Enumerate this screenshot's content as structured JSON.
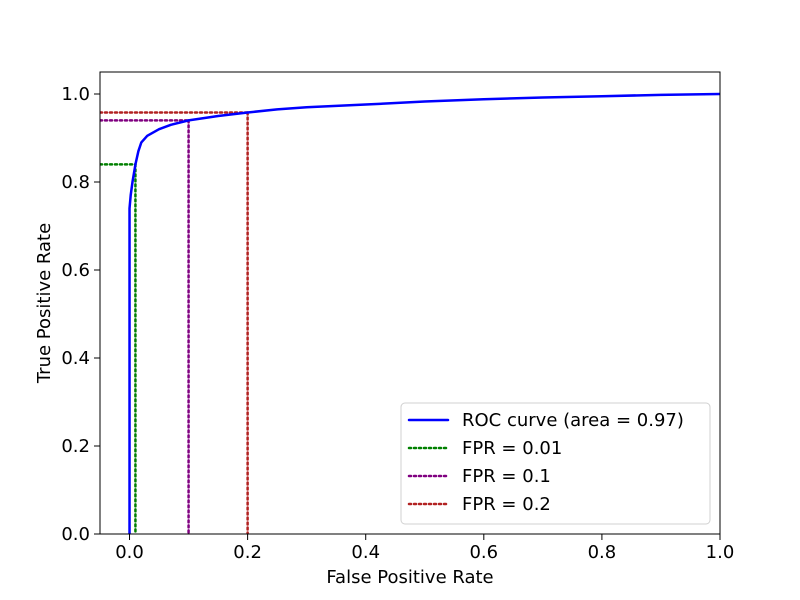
{
  "chart_data": {
    "type": "line",
    "title": "",
    "xlabel": "False Positive Rate",
    "ylabel": "True Positive Rate",
    "xlim": [
      -0.05,
      1.0
    ],
    "ylim": [
      0.0,
      1.05
    ],
    "x_ticks": [
      0.0,
      0.2,
      0.4,
      0.6,
      0.8,
      1.0
    ],
    "x_tick_labels": [
      "0.0",
      "0.2",
      "0.4",
      "0.6",
      "0.8",
      "1.0"
    ],
    "y_ticks": [
      0.0,
      0.2,
      0.4,
      0.6,
      0.8,
      1.0
    ],
    "y_tick_labels": [
      "0.0",
      "0.2",
      "0.4",
      "0.6",
      "0.8",
      "1.0"
    ],
    "grid": false,
    "legend_position": "lower-right",
    "series": [
      {
        "name": "ROC curve (area = 0.97)",
        "color": "#0000ff",
        "line_style": "solid",
        "points": [
          [
            0.0,
            0.0
          ],
          [
            0.0,
            0.74
          ],
          [
            0.002,
            0.77
          ],
          [
            0.005,
            0.8
          ],
          [
            0.01,
            0.84
          ],
          [
            0.015,
            0.87
          ],
          [
            0.02,
            0.89
          ],
          [
            0.03,
            0.905
          ],
          [
            0.05,
            0.92
          ],
          [
            0.07,
            0.93
          ],
          [
            0.1,
            0.94
          ],
          [
            0.15,
            0.95
          ],
          [
            0.2,
            0.958
          ],
          [
            0.25,
            0.965
          ],
          [
            0.3,
            0.97
          ],
          [
            0.4,
            0.976
          ],
          [
            0.5,
            0.983
          ],
          [
            0.6,
            0.988
          ],
          [
            0.7,
            0.992
          ],
          [
            0.8,
            0.995
          ],
          [
            0.9,
            0.998
          ],
          [
            1.0,
            1.0
          ]
        ]
      }
    ],
    "threshold_lines": [
      {
        "name": "FPR = 0.01",
        "fpr": 0.01,
        "tpr": 0.84,
        "color": "#008000"
      },
      {
        "name": "FPR = 0.1",
        "fpr": 0.1,
        "tpr": 0.94,
        "color": "#800080"
      },
      {
        "name": "FPR = 0.2",
        "fpr": 0.2,
        "tpr": 0.958,
        "color": "#b22222"
      }
    ]
  }
}
